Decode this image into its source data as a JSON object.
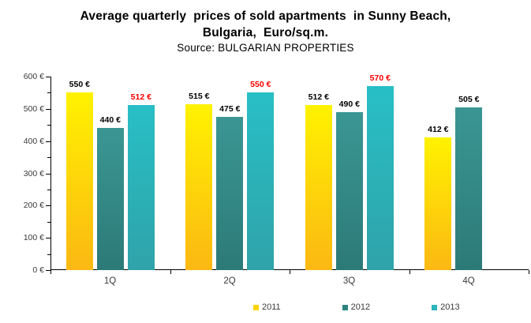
{
  "title_lines": [
    "Average quarterly  prices of sold apartments  in Sunny Beach,",
    "Bulgaria,  Euro/sq.m."
  ],
  "source": "Source: BULGARIAN PROPERTIES",
  "chart_data": {
    "type": "bar",
    "title": "Average quarterly prices of sold apartments in Sunny Beach, Bulgaria, Euro/sq.m.",
    "subtitle": "Source: BULGARIAN PROPERTIES",
    "categories": [
      "1Q",
      "2Q",
      "3Q",
      "4Q"
    ],
    "series": [
      {
        "name": "2011",
        "values": [
          550,
          515,
          512,
          412
        ],
        "color_top": "#FFF200",
        "color_bottom": "#FCB813",
        "legend_color": "#FFD400",
        "label_color": "#000000"
      },
      {
        "name": "2012",
        "values": [
          440,
          475,
          490,
          505
        ],
        "color_top": "#3B9693",
        "color_bottom": "#2C7A78",
        "legend_color": "#2F8381",
        "label_color": "#000000"
      },
      {
        "name": "2013",
        "values": [
          512,
          550,
          570,
          null
        ],
        "color_top": "#28BFC6",
        "color_bottom": "#2FA3A9",
        "legend_color": "#2BB5BC",
        "label_color": "#FE0000"
      }
    ],
    "value_suffix": " €",
    "ylabel": "",
    "xlabel": "",
    "ylim": [
      0,
      600
    ],
    "y_tick_step": 100,
    "y_minor_tick_step": 50,
    "grid": false,
    "legend_position": "bottom"
  }
}
